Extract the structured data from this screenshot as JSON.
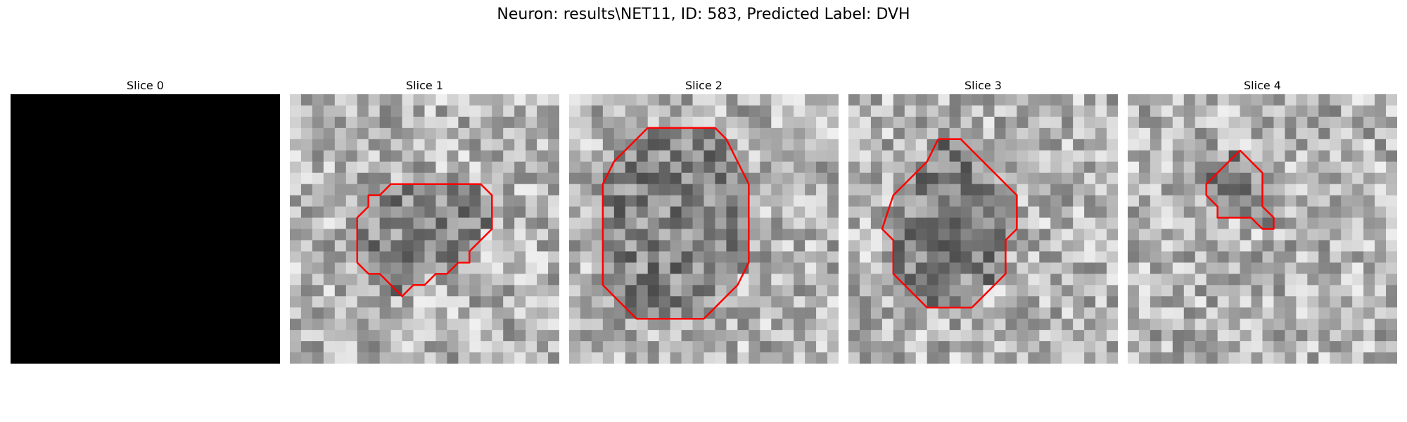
{
  "figure": {
    "title": "Neuron: results\\NET11, ID: 583, Predicted Label: DVH"
  },
  "colors": {
    "contour": "#ff0000",
    "background": "#ffffff"
  },
  "panels": [
    {
      "title": "Slice 0",
      "image": "blank-black",
      "seed": 0,
      "contour": []
    },
    {
      "title": "Slice 1",
      "image": "grayscale-noise",
      "seed": 11,
      "contour": [
        [
          15,
          8
        ],
        [
          17,
          8
        ],
        [
          18,
          9
        ],
        [
          18,
          12
        ],
        [
          16,
          14
        ],
        [
          16,
          15
        ],
        [
          15,
          15
        ],
        [
          14,
          16
        ],
        [
          13,
          16
        ],
        [
          12,
          17
        ],
        [
          11,
          17
        ],
        [
          10,
          18
        ],
        [
          8,
          16
        ],
        [
          7,
          16
        ],
        [
          6,
          15
        ],
        [
          6,
          11
        ],
        [
          7,
          10
        ],
        [
          7,
          9
        ],
        [
          8,
          9
        ],
        [
          9,
          8
        ],
        [
          15,
          8
        ]
      ]
    },
    {
      "title": "Slice 2",
      "image": "grayscale-noise",
      "seed": 22,
      "contour": [
        [
          8,
          3
        ],
        [
          13,
          3
        ],
        [
          14,
          4
        ],
        [
          15,
          6
        ],
        [
          16,
          8
        ],
        [
          16,
          15
        ],
        [
          15,
          17
        ],
        [
          14,
          18
        ],
        [
          13,
          19
        ],
        [
          12,
          20
        ],
        [
          9,
          20
        ],
        [
          6,
          20
        ],
        [
          5,
          19
        ],
        [
          4,
          18
        ],
        [
          3,
          17
        ],
        [
          3,
          8
        ],
        [
          4,
          6
        ],
        [
          5,
          5
        ],
        [
          6,
          4
        ],
        [
          7,
          3
        ],
        [
          8,
          3
        ]
      ]
    },
    {
      "title": "Slice 3",
      "image": "grayscale-noise",
      "seed": 33,
      "contour": [
        [
          8,
          4
        ],
        [
          10,
          4
        ],
        [
          11,
          5
        ],
        [
          12,
          6
        ],
        [
          13,
          7
        ],
        [
          14,
          8
        ],
        [
          15,
          9
        ],
        [
          15,
          12
        ],
        [
          14,
          13
        ],
        [
          14,
          16
        ],
        [
          13,
          17
        ],
        [
          12,
          18
        ],
        [
          11,
          19
        ],
        [
          7,
          19
        ],
        [
          6,
          18
        ],
        [
          5,
          17
        ],
        [
          4,
          16
        ],
        [
          4,
          13
        ],
        [
          3,
          12
        ],
        [
          4,
          9
        ],
        [
          5,
          8
        ],
        [
          6,
          7
        ],
        [
          7,
          6
        ],
        [
          8,
          4
        ]
      ]
    },
    {
      "title": "Slice 4",
      "image": "grayscale-noise",
      "seed": 44,
      "contour": [
        [
          10,
          5
        ],
        [
          11,
          6
        ],
        [
          12,
          7
        ],
        [
          12,
          9
        ],
        [
          12,
          10
        ],
        [
          13,
          11
        ],
        [
          13,
          12
        ],
        [
          12,
          12
        ],
        [
          11,
          11
        ],
        [
          10,
          11
        ],
        [
          9,
          11
        ],
        [
          8,
          11
        ],
        [
          8,
          10
        ],
        [
          7,
          9
        ],
        [
          7,
          8
        ],
        [
          8,
          7
        ],
        [
          9,
          6
        ],
        [
          10,
          5
        ]
      ]
    }
  ]
}
